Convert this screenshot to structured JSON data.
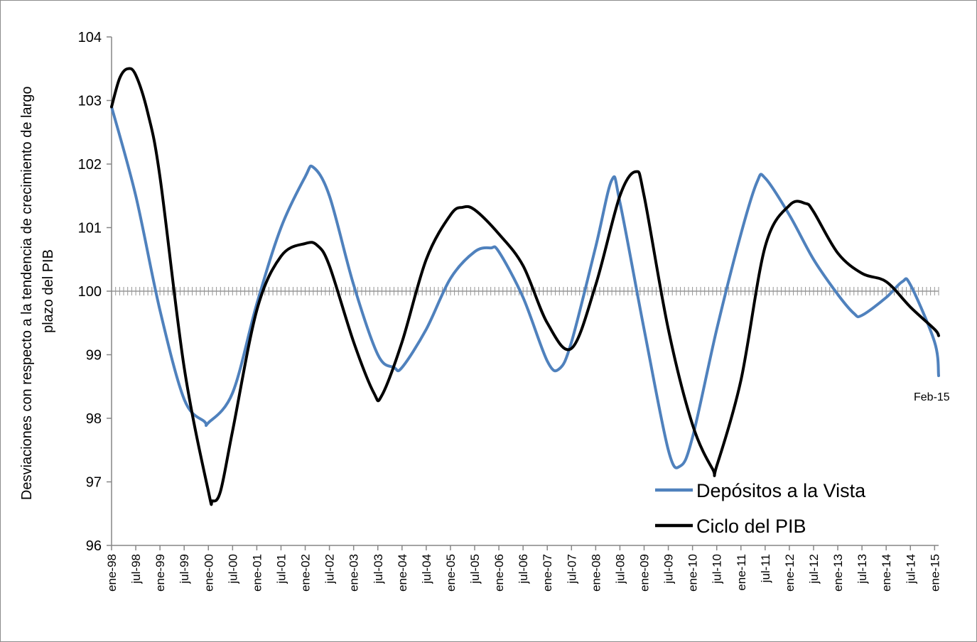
{
  "chart_data": {
    "type": "line",
    "title": "",
    "ylabel_lines": [
      "Desviaciones con respecto a la tendencia de crecimiento de largo",
      "plazo del PIB"
    ],
    "xlabel": "",
    "ylim": [
      96,
      104
    ],
    "yticks": [
      96,
      97,
      98,
      99,
      100,
      101,
      102,
      103,
      104
    ],
    "x_start_month": "1998-01",
    "x_end_month": "2015-02",
    "x_tick_labels": [
      "ene-98",
      "jul-98",
      "ene-99",
      "jul-99",
      "ene-00",
      "jul-00",
      "ene-01",
      "jul-01",
      "ene-02",
      "jul-02",
      "ene-03",
      "jul-03",
      "ene-04",
      "jul-04",
      "ene-05",
      "jul-05",
      "ene-06",
      "jul-06",
      "ene-07",
      "jul-07",
      "ene-08",
      "jul-08",
      "ene-09",
      "jul-09",
      "ene-10",
      "jul-10",
      "ene-11",
      "jul-11",
      "ene-12",
      "jul-12",
      "ene-13",
      "jul-13",
      "ene-14",
      "jul-14",
      "ene-15"
    ],
    "reference_line": 100,
    "annotation": "Feb-15",
    "legend_position": "bottom-right",
    "series": [
      {
        "name": "Depósitos a la Vista",
        "color": "#4f81bd",
        "points": [
          [
            "1998-01",
            102.9
          ],
          [
            "1998-07",
            101.5
          ],
          [
            "1999-01",
            99.7
          ],
          [
            "1999-07",
            98.3
          ],
          [
            "1999-12",
            97.95
          ],
          [
            "2000-01",
            97.93
          ],
          [
            "2000-07",
            98.4
          ],
          [
            "2001-01",
            99.8
          ],
          [
            "2001-07",
            101.0
          ],
          [
            "2002-01",
            101.8
          ],
          [
            "2002-03",
            101.95
          ],
          [
            "2002-07",
            101.5
          ],
          [
            "2003-01",
            100.1
          ],
          [
            "2003-07",
            99.0
          ],
          [
            "2003-11",
            98.8
          ],
          [
            "2004-01",
            98.8
          ],
          [
            "2004-07",
            99.4
          ],
          [
            "2005-01",
            100.2
          ],
          [
            "2005-07",
            100.62
          ],
          [
            "2005-11",
            100.68
          ],
          [
            "2006-01",
            100.62
          ],
          [
            "2006-07",
            99.9
          ],
          [
            "2007-01",
            98.9
          ],
          [
            "2007-04",
            98.78
          ],
          [
            "2007-07",
            99.2
          ],
          [
            "2008-01",
            100.7
          ],
          [
            "2008-05",
            101.75
          ],
          [
            "2008-07",
            101.4
          ],
          [
            "2009-01",
            99.4
          ],
          [
            "2009-07",
            97.5
          ],
          [
            "2009-10",
            97.25
          ],
          [
            "2010-01",
            97.7
          ],
          [
            "2010-07",
            99.4
          ],
          [
            "2011-01",
            100.9
          ],
          [
            "2011-05",
            101.72
          ],
          [
            "2011-07",
            101.78
          ],
          [
            "2012-01",
            101.2
          ],
          [
            "2012-07",
            100.5
          ],
          [
            "2013-01",
            99.95
          ],
          [
            "2013-05",
            99.65
          ],
          [
            "2013-07",
            99.62
          ],
          [
            "2014-01",
            99.9
          ],
          [
            "2014-05",
            100.15
          ],
          [
            "2014-07",
            100.1
          ],
          [
            "2015-01",
            99.2
          ],
          [
            "2015-02",
            98.67
          ]
        ]
      },
      {
        "name": "Ciclo del PIB",
        "color": "#000000",
        "points": [
          [
            "1998-01",
            102.9
          ],
          [
            "1998-03",
            103.35
          ],
          [
            "1998-05",
            103.5
          ],
          [
            "1998-07",
            103.4
          ],
          [
            "1998-10",
            102.8
          ],
          [
            "1999-01",
            101.8
          ],
          [
            "1999-07",
            98.8
          ],
          [
            "2000-01",
            96.85
          ],
          [
            "2000-02",
            96.7
          ],
          [
            "2000-04",
            96.85
          ],
          [
            "2000-07",
            97.8
          ],
          [
            "2001-01",
            99.7
          ],
          [
            "2001-07",
            100.55
          ],
          [
            "2002-01",
            100.75
          ],
          [
            "2002-04",
            100.72
          ],
          [
            "2002-07",
            100.4
          ],
          [
            "2003-01",
            99.2
          ],
          [
            "2003-06",
            98.4
          ],
          [
            "2003-08",
            98.36
          ],
          [
            "2004-01",
            99.2
          ],
          [
            "2004-07",
            100.5
          ],
          [
            "2005-01",
            101.2
          ],
          [
            "2005-04",
            101.32
          ],
          [
            "2005-07",
            101.28
          ],
          [
            "2006-01",
            100.9
          ],
          [
            "2006-07",
            100.4
          ],
          [
            "2007-01",
            99.5
          ],
          [
            "2007-07",
            99.1
          ],
          [
            "2008-01",
            100.1
          ],
          [
            "2008-07",
            101.5
          ],
          [
            "2008-11",
            101.88
          ],
          [
            "2009-01",
            101.5
          ],
          [
            "2009-07",
            99.4
          ],
          [
            "2010-01",
            97.9
          ],
          [
            "2010-06",
            97.2
          ],
          [
            "2010-07",
            97.25
          ],
          [
            "2011-01",
            98.6
          ],
          [
            "2011-07",
            100.7
          ],
          [
            "2012-01",
            101.35
          ],
          [
            "2012-05",
            101.38
          ],
          [
            "2012-07",
            101.25
          ],
          [
            "2013-01",
            100.6
          ],
          [
            "2013-07",
            100.28
          ],
          [
            "2014-01",
            100.15
          ],
          [
            "2014-07",
            99.75
          ],
          [
            "2015-01",
            99.4
          ],
          [
            "2015-02",
            99.3
          ]
        ]
      }
    ]
  }
}
